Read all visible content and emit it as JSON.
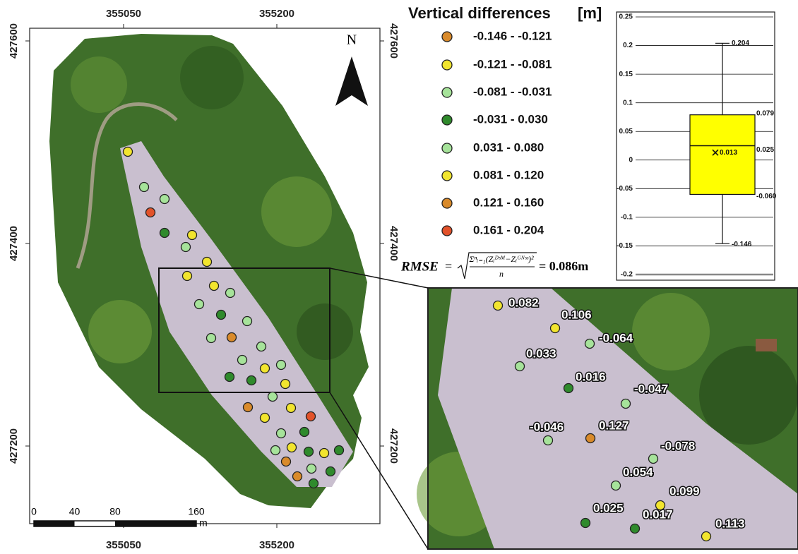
{
  "map": {
    "north": "N",
    "xticks": [
      355050,
      355200
    ],
    "yticks": [
      427600,
      427400,
      427200
    ],
    "scale_bar": {
      "labels": [
        0,
        40,
        80,
        160
      ],
      "unit": "m"
    }
  },
  "legend": {
    "title": "Vertical differences",
    "unit": "[m]",
    "classes": [
      {
        "label": "-0.146 - -0.121",
        "color": "#d98a2a"
      },
      {
        "label": "-0.121 - -0.081",
        "color": "#f2e52e"
      },
      {
        "label": "-0.081 - -0.031",
        "color": "#a6e39a"
      },
      {
        "label": "-0.031 - 0.030",
        "color": "#2f8a2c"
      },
      {
        "label": "0.031 - 0.080",
        "color": "#a6e39a"
      },
      {
        "label": "0.081 - 0.120",
        "color": "#f2e52e"
      },
      {
        "label": "0.121 - 0.160",
        "color": "#d98a2a"
      },
      {
        "label": "0.161 - 0.204",
        "color": "#e2522a"
      }
    ]
  },
  "rmse": {
    "label": "RMSE",
    "equals": "=",
    "numerator": "Σⁿᵢ₌₁(Zᵢᴰˢᴹ−Zᵢᴳᴺˢˢ)²",
    "denominator": "n",
    "result": "= 0.086m"
  },
  "chart_data": {
    "type": "box",
    "ylim": [
      -0.2,
      0.25
    ],
    "yticks": [
      0.25,
      0.2,
      0.15,
      0.1,
      0.05,
      0,
      -0.05,
      -0.1,
      -0.15,
      -0.2
    ],
    "grid": true,
    "color": "#ffff00",
    "values": {
      "min": -0.146,
      "q1": -0.06,
      "median": 0.025,
      "mean": 0.013,
      "q3": 0.079,
      "max": 0.204
    },
    "value_labels": {
      "min": "-0.146",
      "q1": "-0.060",
      "median": "0.025",
      "mean": "0.013",
      "q3": "0.079",
      "max": "0.204"
    }
  },
  "inset": {
    "values": [
      0.082,
      0.106,
      -0.064,
      0.033,
      0.016,
      -0.047,
      -0.046,
      0.127,
      -0.078,
      0.054,
      0.099,
      0.025,
      0.017,
      0.113
    ]
  }
}
